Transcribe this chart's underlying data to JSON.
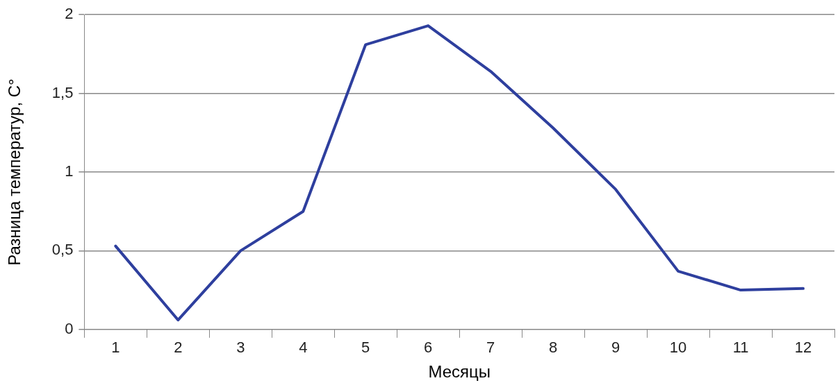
{
  "chart_data": {
    "type": "line",
    "xlabel": "Месяцы",
    "ylabel": "Разница температур, C°",
    "categories": [
      "1",
      "2",
      "3",
      "4",
      "5",
      "6",
      "7",
      "8",
      "9",
      "10",
      "11",
      "12"
    ],
    "series": [
      {
        "color": "#2e3f9e",
        "values": [
          0.53,
          0.06,
          0.5,
          0.75,
          1.81,
          1.93,
          1.64,
          1.28,
          0.89,
          0.37,
          0.25,
          0.26
        ]
      }
    ],
    "ylim": [
      0,
      2
    ],
    "yticks": [
      0,
      {
        "value": 0.5,
        "label": "0,5"
      },
      1,
      {
        "value": 1.5,
        "label": "1,5"
      },
      2
    ],
    "grid": "y",
    "legend": false,
    "marker": "none",
    "line_style": "solid"
  }
}
